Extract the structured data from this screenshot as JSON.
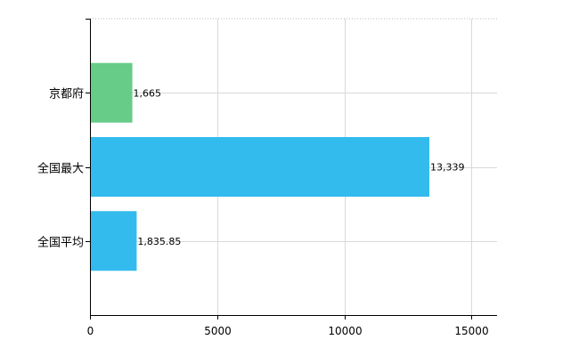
{
  "chart_data": {
    "type": "bar",
    "orientation": "horizontal",
    "categories": [
      "京都府",
      "全国最大",
      "全国平均"
    ],
    "values": [
      1665,
      13339,
      1835.85
    ],
    "value_labels": [
      "1,665",
      "13,339",
      "1,835.85"
    ],
    "colors": [
      "#66cc88",
      "#33bbee",
      "#33bbee"
    ],
    "xlim": [
      0,
      16000
    ],
    "xticks": [
      0,
      5000,
      10000,
      15000
    ],
    "xtick_labels": [
      "0",
      "5000",
      "10000",
      "15000"
    ],
    "grid": true,
    "legend": "none"
  }
}
